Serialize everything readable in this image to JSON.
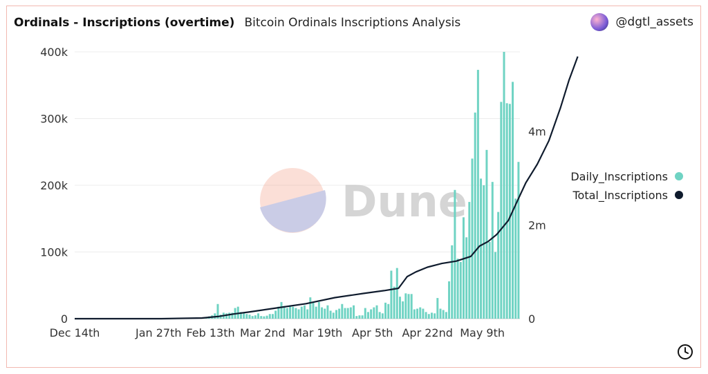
{
  "header": {
    "title": "Ordinals - Inscriptions (overtime)",
    "subtitle": "Bitcoin Ordinals Inscriptions Analysis",
    "author": "@dgtl_assets"
  },
  "watermark": "Dune",
  "icons": {
    "avatar": "user-avatar-icon",
    "clock": "clock-icon"
  },
  "colors": {
    "daily": "#6fd3c3",
    "total": "#0f1b2d",
    "card_border": "#f2b8b0"
  },
  "chart_data": {
    "type": "bar+line",
    "x_ticks": [
      "Dec 14th",
      "Jan 27th",
      "Feb 13th",
      "Mar 2nd",
      "Mar 19th",
      "Apr 5th",
      "Apr 22nd",
      "May 9th"
    ],
    "y_left": {
      "ticks": [
        "0",
        "100k",
        "200k",
        "300k",
        "400k"
      ],
      "range": [
        0,
        400000
      ]
    },
    "y_right": {
      "ticks": [
        "0",
        "2m",
        "4m"
      ],
      "range": [
        0,
        5700000
      ]
    },
    "legend": {
      "position": "right"
    },
    "series": [
      {
        "name": "Daily_Inscriptions",
        "type": "bar",
        "axis": "left",
        "values": [
          0,
          0,
          0,
          0,
          0,
          0,
          0,
          0,
          0,
          0,
          0,
          0,
          0,
          0,
          0,
          0,
          0,
          0,
          0,
          0,
          0,
          0,
          0,
          0,
          0,
          0,
          0,
          0,
          0,
          0,
          0,
          0,
          0,
          0,
          0,
          0,
          0,
          0,
          0,
          0,
          0,
          0,
          0,
          0,
          1000,
          2500,
          3500,
          5000,
          8000,
          22000,
          6000,
          9000,
          8000,
          9000,
          9000,
          16000,
          18000,
          10000,
          9500,
          7000,
          6000,
          4000,
          5000,
          8000,
          4000,
          3500,
          4500,
          7000,
          7000,
          12000,
          18000,
          25000,
          19000,
          16000,
          20000,
          18000,
          16000,
          14000,
          18000,
          20000,
          14000,
          32000,
          24000,
          18000,
          25000,
          17000,
          15000,
          20000,
          12000,
          9000,
          13000,
          15000,
          22000,
          16000,
          16000,
          17000,
          20000,
          4000,
          5000,
          5000,
          16000,
          10000,
          14000,
          17000,
          20000,
          10000,
          8000,
          24000,
          22000,
          72000,
          48000,
          76000,
          33000,
          26000,
          38000,
          37000,
          37000,
          14000,
          15000,
          17000,
          15000,
          10000,
          7000,
          9000,
          8000,
          31000,
          15000,
          13000,
          10000,
          56000,
          110000,
          193000,
          90000,
          85000,
          152000,
          122000,
          175000,
          240000,
          309000,
          373000,
          210000,
          200000,
          253000,
          115000,
          205000,
          100000,
          160000,
          325000,
          400000,
          323000,
          322000,
          355000,
          180000,
          235000
        ]
      },
      {
        "name": "Total_Inscriptions",
        "type": "line",
        "axis": "right",
        "points": [
          [
            0,
            0
          ],
          [
            30,
            0
          ],
          [
            44,
            15000
          ],
          [
            50,
            50000
          ],
          [
            55,
            100000
          ],
          [
            60,
            140000
          ],
          [
            70,
            230000
          ],
          [
            80,
            320000
          ],
          [
            90,
            450000
          ],
          [
            100,
            540000
          ],
          [
            107,
            600000
          ],
          [
            112,
            650000
          ],
          [
            115,
            900000
          ],
          [
            118,
            1000000
          ],
          [
            122,
            1100000
          ],
          [
            127,
            1180000
          ],
          [
            132,
            1230000
          ],
          [
            137,
            1330000
          ],
          [
            140,
            1550000
          ],
          [
            143,
            1650000
          ],
          [
            146,
            1800000
          ],
          [
            150,
            2100000
          ],
          [
            153,
            2500000
          ],
          [
            156,
            2900000
          ],
          [
            160,
            3300000
          ],
          [
            164,
            3800000
          ],
          [
            168,
            4500000
          ],
          [
            171,
            5100000
          ],
          [
            174,
            5600000
          ]
        ]
      }
    ]
  }
}
